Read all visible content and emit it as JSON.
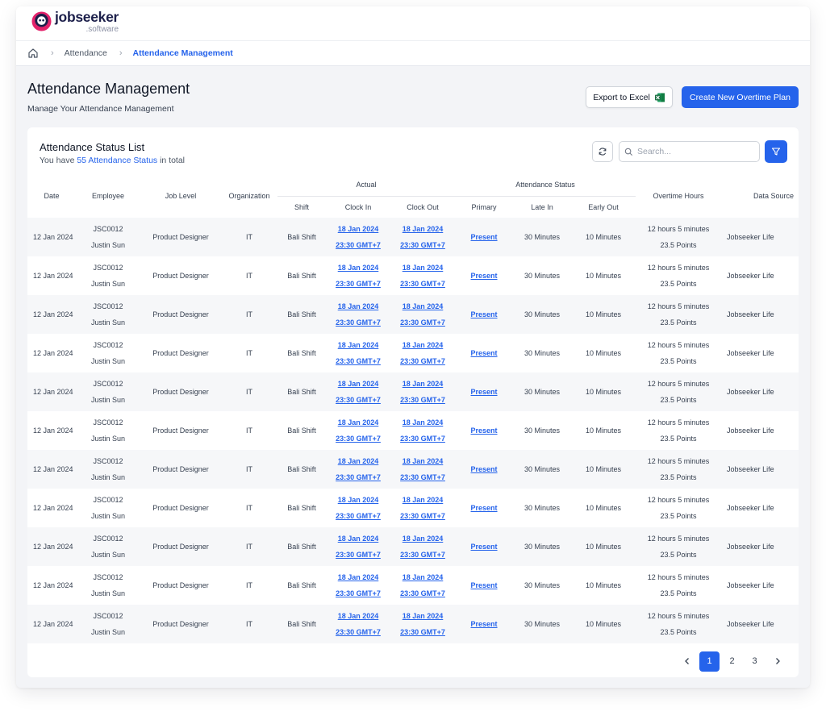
{
  "brand": {
    "name": "jobseeker",
    "sub": ".software"
  },
  "breadcrumb": {
    "home_icon": "home-icon",
    "items": [
      "Attendance",
      "Attendance Management"
    ]
  },
  "page": {
    "title": "Attendance Management",
    "subtitle": "Manage Your Attendance Management"
  },
  "actions": {
    "export_label": "Export to Excel",
    "create_label": "Create New Overtime Plan"
  },
  "list": {
    "title": "Attendance Status List",
    "summary_prefix": "You have ",
    "summary_count": "55 Attendance Status",
    "summary_suffix": " in total",
    "search_placeholder": "Search..."
  },
  "table": {
    "group_headers": {
      "actual": "Actual",
      "attendance_status": "Attendance Status"
    },
    "headers": {
      "date": "Date",
      "employee": "Employee",
      "job_level": "Job Level",
      "organization": "Organization",
      "shift": "Shift",
      "clock_in": "Clock In",
      "clock_out": "Clock Out",
      "primary": "Primary",
      "late_in": "Late In",
      "early_out": "Early Out",
      "overtime_hours": "Overtime Hours",
      "data_source": "Data Source"
    },
    "rows": [
      {
        "date": "12 Jan 2024",
        "emp_id": "JSC0012",
        "emp_name": "Justin Sun",
        "job_level": "Product Designer",
        "org": "IT",
        "shift": "Bali Shift",
        "in_date": "18 Jan 2024",
        "in_time": "23:30 GMT+7",
        "out_date": "18 Jan 2024",
        "out_time": "23:30 GMT+7",
        "primary": "Present",
        "late_in": "30 Minutes",
        "early_out": "10 Minutes",
        "ot_hours": "12 hours 5 minutes",
        "ot_points": "23.5 Points",
        "source": "Jobseeker Life"
      },
      {
        "date": "12 Jan 2024",
        "emp_id": "JSC0012",
        "emp_name": "Justin Sun",
        "job_level": "Product Designer",
        "org": "IT",
        "shift": "Bali Shift",
        "in_date": "18 Jan 2024",
        "in_time": "23:30 GMT+7",
        "out_date": "18 Jan 2024",
        "out_time": "23:30 GMT+7",
        "primary": "Present",
        "late_in": "30 Minutes",
        "early_out": "10 Minutes",
        "ot_hours": "12 hours 5 minutes",
        "ot_points": "23.5 Points",
        "source": "Jobseeker Life"
      },
      {
        "date": "12 Jan 2024",
        "emp_id": "JSC0012",
        "emp_name": "Justin Sun",
        "job_level": "Product Designer",
        "org": "IT",
        "shift": "Bali Shift",
        "in_date": "18 Jan 2024",
        "in_time": "23:30 GMT+7",
        "out_date": "18 Jan 2024",
        "out_time": "23:30 GMT+7",
        "primary": "Present",
        "late_in": "30 Minutes",
        "early_out": "10 Minutes",
        "ot_hours": "12 hours 5 minutes",
        "ot_points": "23.5 Points",
        "source": "Jobseeker Life"
      },
      {
        "date": "12 Jan 2024",
        "emp_id": "JSC0012",
        "emp_name": "Justin Sun",
        "job_level": "Product Designer",
        "org": "IT",
        "shift": "Bali Shift",
        "in_date": "18 Jan 2024",
        "in_time": "23:30 GMT+7",
        "out_date": "18 Jan 2024",
        "out_time": "23:30 GMT+7",
        "primary": "Present",
        "late_in": "30 Minutes",
        "early_out": "10 Minutes",
        "ot_hours": "12 hours 5 minutes",
        "ot_points": "23.5 Points",
        "source": "Jobseeker Life"
      },
      {
        "date": "12 Jan 2024",
        "emp_id": "JSC0012",
        "emp_name": "Justin Sun",
        "job_level": "Product Designer",
        "org": "IT",
        "shift": "Bali Shift",
        "in_date": "18 Jan 2024",
        "in_time": "23:30 GMT+7",
        "out_date": "18 Jan 2024",
        "out_time": "23:30 GMT+7",
        "primary": "Present",
        "late_in": "30 Minutes",
        "early_out": "10 Minutes",
        "ot_hours": "12 hours 5 minutes",
        "ot_points": "23.5 Points",
        "source": "Jobseeker Life"
      },
      {
        "date": "12 Jan 2024",
        "emp_id": "JSC0012",
        "emp_name": "Justin Sun",
        "job_level": "Product Designer",
        "org": "IT",
        "shift": "Bali Shift",
        "in_date": "18 Jan 2024",
        "in_time": "23:30 GMT+7",
        "out_date": "18 Jan 2024",
        "out_time": "23:30 GMT+7",
        "primary": "Present",
        "late_in": "30 Minutes",
        "early_out": "10 Minutes",
        "ot_hours": "12 hours 5 minutes",
        "ot_points": "23.5 Points",
        "source": "Jobseeker Life"
      },
      {
        "date": "12 Jan 2024",
        "emp_id": "JSC0012",
        "emp_name": "Justin Sun",
        "job_level": "Product Designer",
        "org": "IT",
        "shift": "Bali Shift",
        "in_date": "18 Jan 2024",
        "in_time": "23:30 GMT+7",
        "out_date": "18 Jan 2024",
        "out_time": "23:30 GMT+7",
        "primary": "Present",
        "late_in": "30 Minutes",
        "early_out": "10 Minutes",
        "ot_hours": "12 hours 5 minutes",
        "ot_points": "23.5 Points",
        "source": "Jobseeker Life"
      },
      {
        "date": "12 Jan 2024",
        "emp_id": "JSC0012",
        "emp_name": "Justin Sun",
        "job_level": "Product Designer",
        "org": "IT",
        "shift": "Bali Shift",
        "in_date": "18 Jan 2024",
        "in_time": "23:30 GMT+7",
        "out_date": "18 Jan 2024",
        "out_time": "23:30 GMT+7",
        "primary": "Present",
        "late_in": "30 Minutes",
        "early_out": "10 Minutes",
        "ot_hours": "12 hours 5 minutes",
        "ot_points": "23.5 Points",
        "source": "Jobseeker Life"
      },
      {
        "date": "12 Jan 2024",
        "emp_id": "JSC0012",
        "emp_name": "Justin Sun",
        "job_level": "Product Designer",
        "org": "IT",
        "shift": "Bali Shift",
        "in_date": "18 Jan 2024",
        "in_time": "23:30 GMT+7",
        "out_date": "18 Jan 2024",
        "out_time": "23:30 GMT+7",
        "primary": "Present",
        "late_in": "30 Minutes",
        "early_out": "10 Minutes",
        "ot_hours": "12 hours 5 minutes",
        "ot_points": "23.5 Points",
        "source": "Jobseeker Life"
      },
      {
        "date": "12 Jan 2024",
        "emp_id": "JSC0012",
        "emp_name": "Justin Sun",
        "job_level": "Product Designer",
        "org": "IT",
        "shift": "Bali Shift",
        "in_date": "18 Jan 2024",
        "in_time": "23:30 GMT+7",
        "out_date": "18 Jan 2024",
        "out_time": "23:30 GMT+7",
        "primary": "Present",
        "late_in": "30 Minutes",
        "early_out": "10 Minutes",
        "ot_hours": "12 hours 5 minutes",
        "ot_points": "23.5 Points",
        "source": "Jobseeker Life"
      },
      {
        "date": "12 Jan 2024",
        "emp_id": "JSC0012",
        "emp_name": "Justin Sun",
        "job_level": "Product Designer",
        "org": "IT",
        "shift": "Bali Shift",
        "in_date": "18 Jan 2024",
        "in_time": "23:30 GMT+7",
        "out_date": "18 Jan 2024",
        "out_time": "23:30 GMT+7",
        "primary": "Present",
        "late_in": "30 Minutes",
        "early_out": "10 Minutes",
        "ot_hours": "12 hours 5 minutes",
        "ot_points": "23.5 Points",
        "source": "Jobseeker Life"
      }
    ]
  },
  "pagination": {
    "pages": [
      "1",
      "2",
      "3"
    ],
    "current": "1",
    "prev_icon": "chevron-left-icon",
    "next_icon": "chevron-right-icon"
  },
  "colors": {
    "accent": "#2563eb",
    "brand_pink": "#e4236b",
    "brand_navy": "#1c1f4a",
    "excel_green": "#1d7044"
  }
}
